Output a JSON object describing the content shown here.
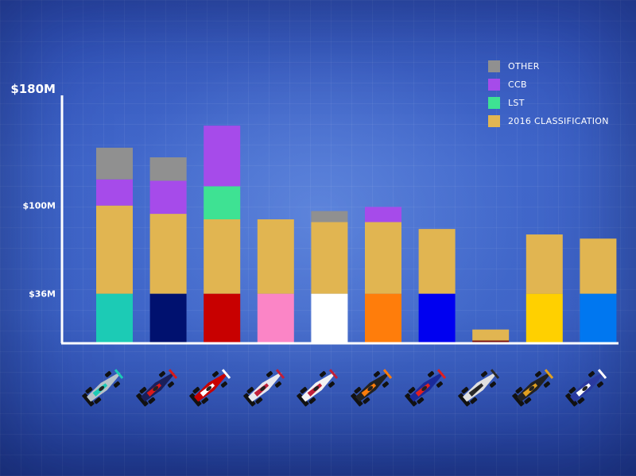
{
  "chart_data": {
    "type": "bar",
    "stacked": true,
    "ylim": [
      0,
      180
    ],
    "yticks": [
      {
        "value": 180,
        "label": "$180M"
      },
      {
        "value": 100,
        "label": "$100M"
      },
      {
        "value": 36,
        "label": "$36M"
      }
    ],
    "legend_position": "top-right",
    "series": [
      {
        "name": "2016 CLASSIFICATION",
        "color": "#e1b551"
      },
      {
        "name": "LST",
        "color": "#3ee293"
      },
      {
        "name": "CCB",
        "color": "#a64bea"
      },
      {
        "name": "OTHER",
        "color": "#909090"
      }
    ],
    "legend_order": [
      "OTHER",
      "CCB",
      "LST",
      "2016 CLASSIFICATION"
    ],
    "teams": [
      {
        "id": "team-1",
        "base": 36,
        "base_color": "#1ccbb5",
        "classification": 64,
        "lst": 0,
        "ccb": 19,
        "other": 23
      },
      {
        "id": "team-2",
        "base": 36,
        "base_color": "#00116f",
        "classification": 58,
        "lst": 0,
        "ccb": 24,
        "other": 17
      },
      {
        "id": "team-3",
        "base": 36,
        "base_color": "#c80000",
        "classification": 54,
        "lst": 24,
        "ccb": 44,
        "other": 0
      },
      {
        "id": "team-4",
        "base": 36,
        "base_color": "#fb85c6",
        "classification": 54,
        "lst": 0,
        "ccb": 0,
        "other": 0
      },
      {
        "id": "team-5",
        "base": 36,
        "base_color": "#ffffff",
        "classification": 52,
        "lst": 0,
        "ccb": 0,
        "other": 8
      },
      {
        "id": "team-6",
        "base": 36,
        "base_color": "#ff7d0b",
        "classification": 52,
        "lst": 0,
        "ccb": 11,
        "other": 0
      },
      {
        "id": "team-7",
        "base": 36,
        "base_color": "#0000f0",
        "classification": 47,
        "lst": 0,
        "ccb": 0,
        "other": 0
      },
      {
        "id": "team-8",
        "base": 2,
        "base_color": "#7a1010",
        "classification": 8,
        "lst": 0,
        "ccb": 0,
        "other": 0
      },
      {
        "id": "team-9",
        "base": 36,
        "base_color": "#ffd000",
        "classification": 43,
        "lst": 0,
        "ccb": 0,
        "other": 0
      },
      {
        "id": "team-10",
        "base": 36,
        "base_color": "#0077f0",
        "classification": 40,
        "lst": 0,
        "ccb": 0,
        "other": 0
      }
    ]
  },
  "cars": [
    {
      "name": "car-1",
      "body": "#b8c2c8",
      "accent": "#1ccbb5"
    },
    {
      "name": "car-2",
      "body": "#1a1f5a",
      "accent": "#d81a1a"
    },
    {
      "name": "car-3",
      "body": "#c80000",
      "accent": "#ffffff"
    },
    {
      "name": "car-4",
      "body": "#e8e8ee",
      "accent": "#c0203a"
    },
    {
      "name": "car-5",
      "body": "#f2f2f2",
      "accent": "#c0203a"
    },
    {
      "name": "car-6",
      "body": "#222222",
      "accent": "#ff7d0b"
    },
    {
      "name": "car-7",
      "body": "#1a2a9a",
      "accent": "#e02020"
    },
    {
      "name": "car-8",
      "body": "#e0e0e0",
      "accent": "#2a2a2a"
    },
    {
      "name": "car-9",
      "body": "#222222",
      "accent": "#e0a020"
    },
    {
      "name": "car-10",
      "body": "#2a3aa0",
      "accent": "#ffffff"
    }
  ]
}
